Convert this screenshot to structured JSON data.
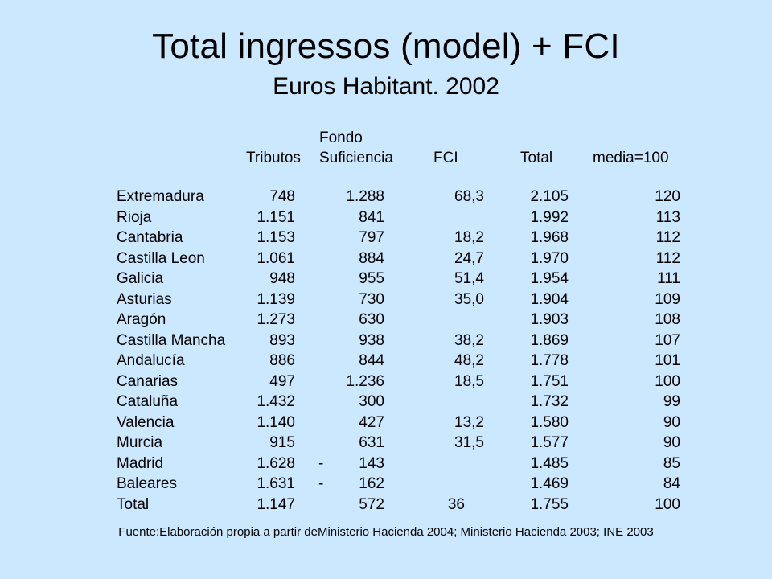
{
  "title": "Total ingressos (model) + FCI",
  "subtitle": "Euros Habitant. 2002",
  "headers": {
    "tributos": "Tributos",
    "fondo_line1": "Fondo",
    "fondo_line2": "Suficiencia",
    "fci": "FCI",
    "total": "Total",
    "media": "media=100"
  },
  "rows": [
    {
      "name": "Extremadura",
      "tributos": "748",
      "dash": "",
      "fondo": "1.288",
      "fci": "68,3",
      "total": "2.105",
      "media": "120"
    },
    {
      "name": "Rioja",
      "tributos": "1.151",
      "dash": "",
      "fondo": "841",
      "fci": "",
      "total": "1.992",
      "media": "113"
    },
    {
      "name": "Cantabria",
      "tributos": "1.153",
      "dash": "",
      "fondo": "797",
      "fci": "18,2",
      "total": "1.968",
      "media": "112"
    },
    {
      "name": "Castilla Leon",
      "tributos": "1.061",
      "dash": "",
      "fondo": "884",
      "fci": "24,7",
      "total": "1.970",
      "media": "112"
    },
    {
      "name": "Galicia",
      "tributos": "948",
      "dash": "",
      "fondo": "955",
      "fci": "51,4",
      "total": "1.954",
      "media": "111"
    },
    {
      "name": "Asturias",
      "tributos": "1.139",
      "dash": "",
      "fondo": "730",
      "fci": "35,0",
      "total": "1.904",
      "media": "109"
    },
    {
      "name": "Aragón",
      "tributos": "1.273",
      "dash": "",
      "fondo": "630",
      "fci": "",
      "total": "1.903",
      "media": "108"
    },
    {
      "name": "Castilla Mancha",
      "tributos": "893",
      "dash": "",
      "fondo": "938",
      "fci": "38,2",
      "total": "1.869",
      "media": "107"
    },
    {
      "name": "Andalucía",
      "tributos": "886",
      "dash": "",
      "fondo": "844",
      "fci": "48,2",
      "total": "1.778",
      "media": "101"
    },
    {
      "name": "Canarias",
      "tributos": "497",
      "dash": "",
      "fondo": "1.236",
      "fci": "18,5",
      "total": "1.751",
      "media": "100"
    },
    {
      "name": "Cataluña",
      "tributos": "1.432",
      "dash": "",
      "fondo": "300",
      "fci": "",
      "total": "1.732",
      "media": "99"
    },
    {
      "name": "Valencia",
      "tributos": "1.140",
      "dash": "",
      "fondo": "427",
      "fci": "13,2",
      "total": "1.580",
      "media": "90"
    },
    {
      "name": "Murcia",
      "tributos": "915",
      "dash": "",
      "fondo": "631",
      "fci": "31,5",
      "total": "1.577",
      "media": "90"
    },
    {
      "name": "Madrid",
      "tributos": "1.628",
      "dash": "-",
      "fondo": "143",
      "fci": "",
      "total": "1.485",
      "media": "85"
    },
    {
      "name": "Baleares",
      "tributos": "1.631",
      "dash": "-",
      "fondo": "162",
      "fci": "",
      "total": "1.469",
      "media": "84"
    },
    {
      "name": "Total",
      "tributos": "1.147",
      "dash": "",
      "fondo": "572",
      "fci": "36",
      "total": "1.755",
      "media": "100",
      "fci_shift": true
    }
  ],
  "source": "Fuente:Elaboración propia a partir deMinisterio Hacienda 2004; Ministerio Hacienda 2003; INE 2003"
}
